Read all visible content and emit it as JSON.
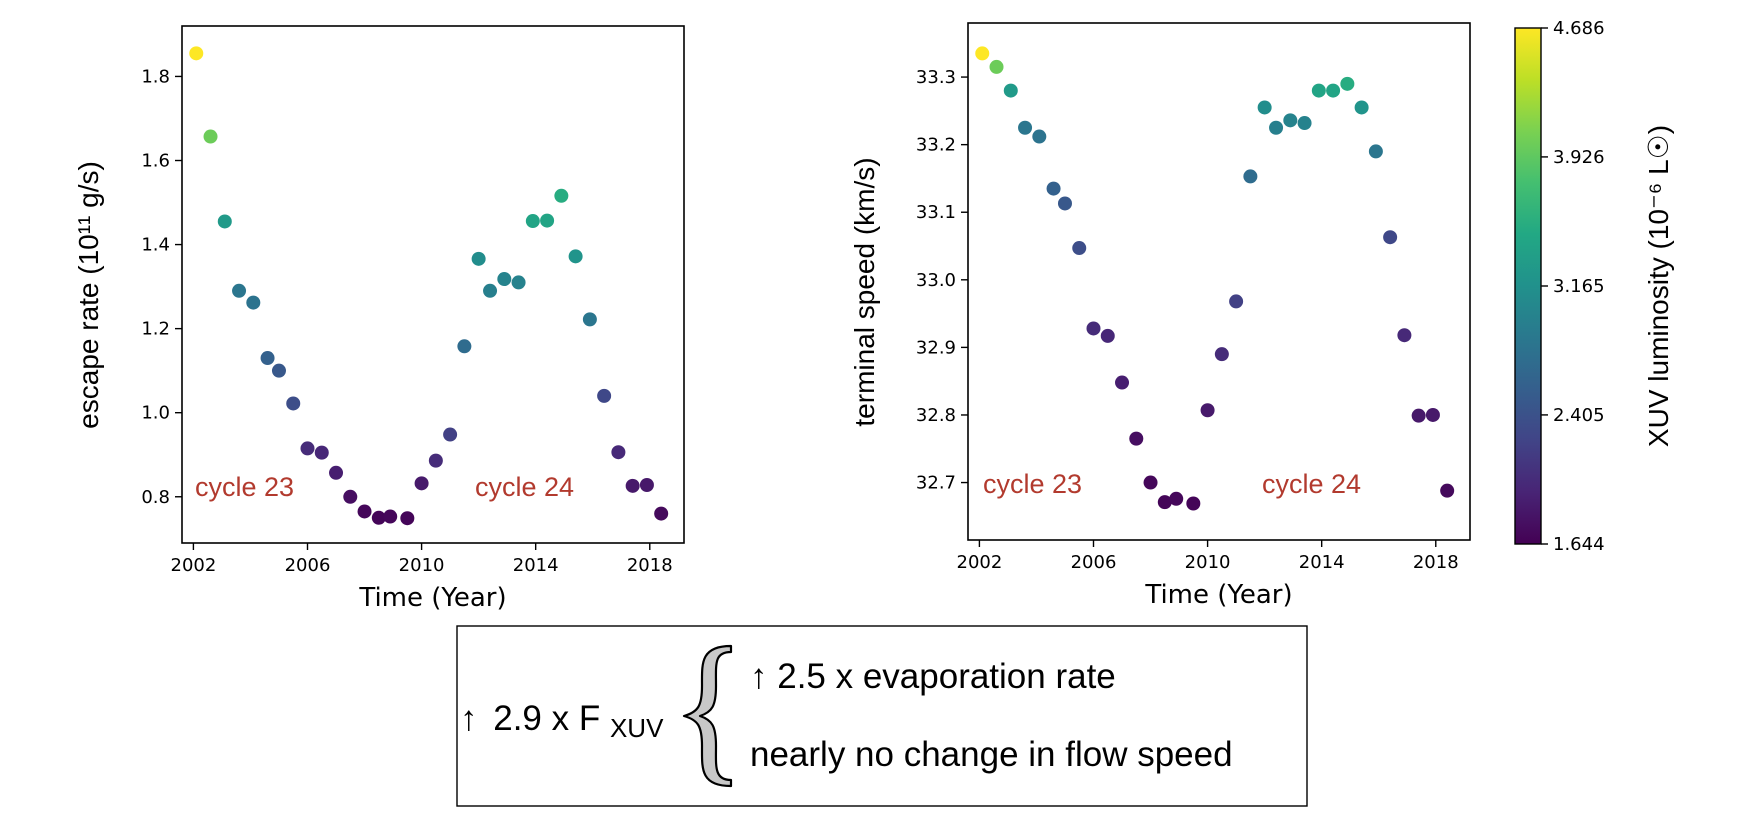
{
  "chart_data": [
    {
      "type": "scatter",
      "xlabel": "Time (Year)",
      "ylabel": "escape rate (10¹¹ g/s)",
      "xlim": [
        2001.6,
        2019.2
      ],
      "ylim": [
        0.69,
        1.92
      ],
      "xticks": [
        "2002",
        "2006",
        "2010",
        "2014",
        "2018"
      ],
      "yticks": [
        "0.8",
        "1.0",
        "1.2",
        "1.4",
        "1.6",
        "1.8"
      ],
      "annotations": [
        "cycle 23",
        "cycle 24"
      ],
      "colorscale": "viridis",
      "series": [
        {
          "x": [
            2002.1,
            2002.6,
            2003.1,
            2003.6,
            2004.1,
            2004.6,
            2005.0,
            2005.5,
            2006.0,
            2006.5,
            2007.0,
            2007.5,
            2008.0,
            2008.5,
            2008.9,
            2009.5,
            2010.0,
            2010.5,
            2011.0,
            2011.5,
            2012.0,
            2012.4,
            2012.9,
            2013.4,
            2013.9,
            2014.4,
            2014.9,
            2015.4,
            2015.9,
            2016.4,
            2016.9,
            2017.4,
            2017.9,
            2018.4
          ],
          "y": [
            1.855,
            1.657,
            1.455,
            1.29,
            1.262,
            1.13,
            1.1,
            1.022,
            0.915,
            0.905,
            0.857,
            0.8,
            0.765,
            0.75,
            0.753,
            0.749,
            0.832,
            0.886,
            0.948,
            1.158,
            1.366,
            1.29,
            1.318,
            1.31,
            1.456,
            1.457,
            1.516,
            1.372,
            1.222,
            1.04,
            0.906,
            0.826,
            0.828,
            0.76
          ],
          "luminosity": [
            4.686,
            4.0,
            3.28,
            2.84,
            2.8,
            2.58,
            2.48,
            2.36,
            2.02,
            1.98,
            1.9,
            1.76,
            1.7,
            1.68,
            1.7,
            1.68,
            1.86,
            2.02,
            2.22,
            2.72,
            3.12,
            2.95,
            3.0,
            2.98,
            3.42,
            3.42,
            3.52,
            3.2,
            2.84,
            2.3,
            2.0,
            1.85,
            1.85,
            1.72
          ]
        }
      ]
    },
    {
      "type": "scatter",
      "xlabel": "Time (Year)",
      "ylabel": "terminal speed (km/s)",
      "xlim": [
        2001.6,
        2019.2
      ],
      "ylim": [
        32.615,
        33.38
      ],
      "xticks": [
        "2002",
        "2006",
        "2010",
        "2014",
        "2018"
      ],
      "yticks": [
        "32.7",
        "32.8",
        "32.9",
        "33.0",
        "33.1",
        "33.2",
        "33.3"
      ],
      "annotations": [
        "cycle 23",
        "cycle 24"
      ],
      "colorscale": "viridis",
      "series": [
        {
          "x": [
            2002.1,
            2002.6,
            2003.1,
            2003.6,
            2004.1,
            2004.6,
            2005.0,
            2005.5,
            2006.0,
            2006.5,
            2007.0,
            2007.5,
            2008.0,
            2008.5,
            2008.9,
            2009.5,
            2010.0,
            2010.5,
            2011.0,
            2011.5,
            2012.0,
            2012.4,
            2012.9,
            2013.4,
            2013.9,
            2014.4,
            2014.9,
            2015.4,
            2015.9,
            2016.4,
            2016.9,
            2017.4,
            2017.9,
            2018.4
          ],
          "y": [
            33.335,
            33.315,
            33.28,
            33.225,
            33.212,
            33.135,
            33.113,
            33.047,
            32.928,
            32.917,
            32.848,
            32.765,
            32.7,
            32.671,
            32.676,
            32.669,
            32.807,
            32.89,
            32.968,
            33.153,
            33.255,
            33.225,
            33.236,
            33.232,
            33.28,
            33.28,
            33.29,
            33.255,
            33.19,
            33.063,
            32.918,
            32.799,
            32.8,
            32.688
          ],
          "luminosity": [
            4.686,
            4.0,
            3.28,
            2.84,
            2.8,
            2.58,
            2.48,
            2.36,
            2.02,
            1.98,
            1.9,
            1.76,
            1.7,
            1.68,
            1.7,
            1.68,
            1.86,
            2.02,
            2.22,
            2.72,
            3.12,
            2.95,
            3.0,
            2.98,
            3.42,
            3.42,
            3.52,
            3.2,
            2.84,
            2.3,
            2.0,
            1.85,
            1.85,
            1.72
          ]
        }
      ]
    }
  ],
  "colorbar": {
    "label": "XUV luminosity (10⁻⁶ L☉)",
    "min": 1.644,
    "max": 4.686,
    "ticks": [
      "4.686",
      "3.926",
      "3.165",
      "2.405",
      "1.644"
    ]
  },
  "summary_box": {
    "left_arrow": "↑",
    "left_text": "2.9 x F",
    "left_subscript": "XUV",
    "line1": "↑ 2.5 x evaporation rate",
    "line2": "nearly no change in flow speed"
  }
}
